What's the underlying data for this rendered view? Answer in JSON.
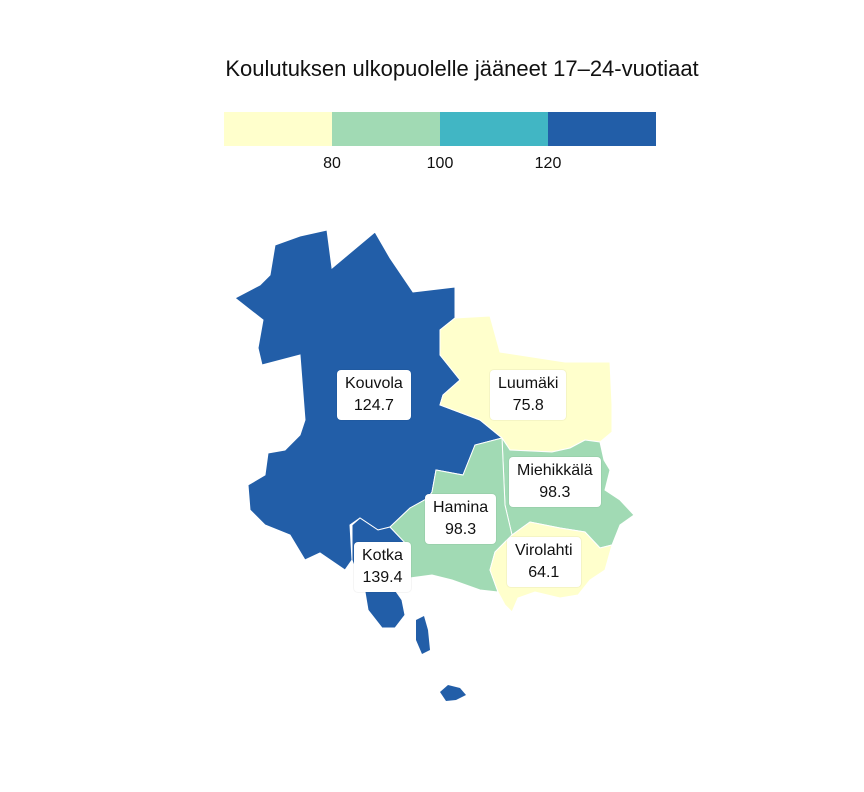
{
  "title": "Koulutuksen ulkopuolelle jääneet 17–24-vuotiaat",
  "legend": {
    "colors": [
      "#ffffcc",
      "#a1dab4",
      "#41b6c4",
      "#225ea8"
    ],
    "ticks": [
      "80",
      "100",
      "120"
    ]
  },
  "regions": [
    {
      "name": "Kouvola",
      "value": "124.7",
      "color": "#225ea8"
    },
    {
      "name": "Luumäki",
      "value": "75.8",
      "color": "#ffffcc"
    },
    {
      "name": "Miehikkälä",
      "value": "98.3",
      "color": "#a1dab4"
    },
    {
      "name": "Hamina",
      "value": "98.3",
      "color": "#a1dab4"
    },
    {
      "name": "Virolahti",
      "value": "64.1",
      "color": "#ffffcc"
    },
    {
      "name": "Kotka",
      "value": "139.4",
      "color": "#225ea8"
    }
  ]
}
